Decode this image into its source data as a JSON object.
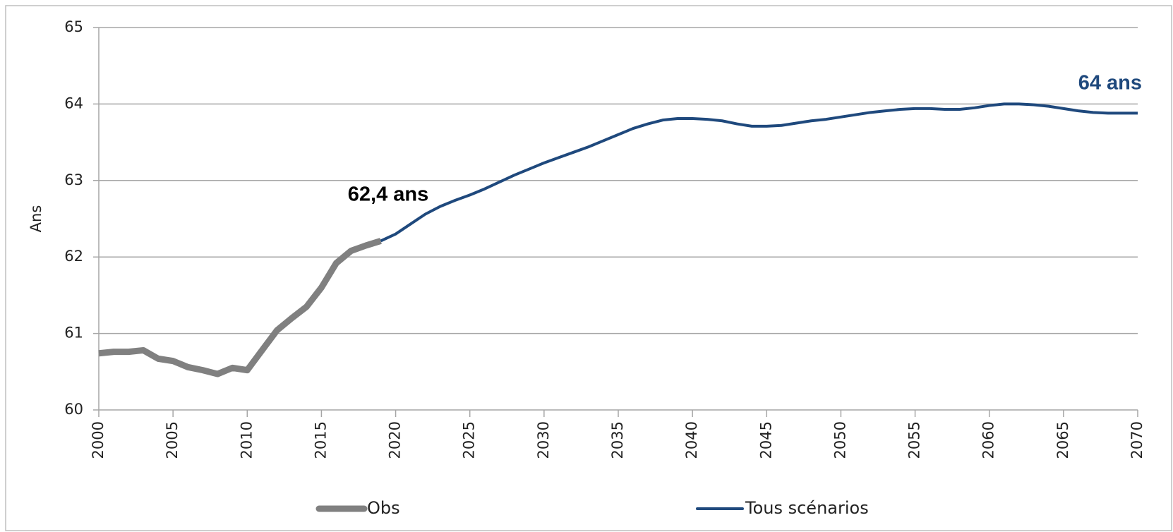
{
  "chart_data": {
    "type": "line",
    "y_label": "Ans",
    "x": [
      2000,
      2001,
      2002,
      2003,
      2004,
      2005,
      2006,
      2007,
      2008,
      2009,
      2010,
      2011,
      2012,
      2013,
      2014,
      2015,
      2016,
      2017,
      2018,
      2019,
      2020,
      2021,
      2022,
      2023,
      2024,
      2025,
      2026,
      2027,
      2028,
      2029,
      2030,
      2031,
      2032,
      2033,
      2034,
      2035,
      2036,
      2037,
      2038,
      2039,
      2040,
      2041,
      2042,
      2043,
      2044,
      2045,
      2046,
      2047,
      2048,
      2049,
      2050,
      2051,
      2052,
      2053,
      2054,
      2055,
      2056,
      2057,
      2058,
      2059,
      2060,
      2061,
      2062,
      2063,
      2064,
      2065,
      2066,
      2067,
      2068,
      2069,
      2070
    ],
    "series": [
      {
        "name": "Obs",
        "color": "#808080",
        "width": 9,
        "values": [
          60.74,
          60.76,
          60.76,
          60.78,
          60.67,
          60.64,
          60.56,
          60.52,
          60.47,
          60.55,
          60.52,
          60.78,
          61.04,
          61.2,
          61.35,
          61.6,
          61.92,
          62.08,
          62.15,
          62.21,
          null,
          null,
          null,
          null,
          null,
          null,
          null,
          null,
          null,
          null,
          null,
          null,
          null,
          null,
          null,
          null,
          null,
          null,
          null,
          null,
          null,
          null,
          null,
          null,
          null,
          null,
          null,
          null,
          null,
          null,
          null,
          null,
          null,
          null,
          null,
          null,
          null,
          null,
          null,
          null,
          null,
          null,
          null,
          null,
          null,
          null,
          null,
          null,
          null,
          null,
          null
        ]
      },
      {
        "name": "Tous scénarios",
        "color": "#1f497d",
        "width": 4,
        "values": [
          null,
          null,
          null,
          null,
          null,
          null,
          null,
          null,
          null,
          null,
          null,
          null,
          null,
          null,
          null,
          null,
          null,
          null,
          null,
          62.21,
          62.3,
          62.43,
          62.56,
          62.66,
          62.74,
          62.81,
          62.89,
          62.98,
          63.07,
          63.15,
          63.23,
          63.3,
          63.37,
          63.44,
          63.52,
          63.6,
          63.68,
          63.74,
          63.79,
          63.81,
          63.81,
          63.8,
          63.78,
          63.74,
          63.71,
          63.71,
          63.72,
          63.75,
          63.78,
          63.8,
          63.83,
          63.86,
          63.89,
          63.91,
          63.93,
          63.94,
          63.94,
          63.93,
          63.93,
          63.95,
          63.98,
          64.0,
          64.0,
          63.99,
          63.97,
          63.94,
          63.91,
          63.89,
          63.88,
          63.88,
          63.88
        ]
      }
    ],
    "annotations": [
      {
        "text": "62,4 ans",
        "color": "#000000"
      },
      {
        "text": "64 ans",
        "color": "#1f497d"
      }
    ],
    "xlim": [
      2000,
      2070
    ],
    "xticks": [
      2000,
      2005,
      2010,
      2015,
      2020,
      2025,
      2030,
      2035,
      2040,
      2045,
      2050,
      2055,
      2060,
      2065,
      2070
    ],
    "ylim": [
      60,
      65
    ],
    "yticks": [
      60,
      61,
      62,
      63,
      64,
      65
    ],
    "grid": true
  }
}
